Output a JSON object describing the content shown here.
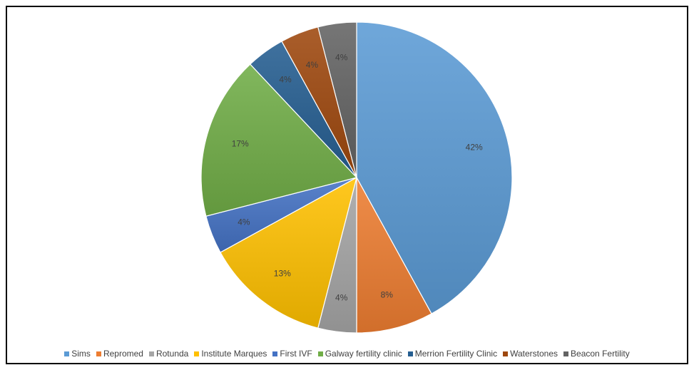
{
  "chart_data": {
    "type": "pie",
    "title": "",
    "legend_position": "bottom",
    "slices": [
      {
        "name": "Sims",
        "value": 42,
        "label": "42%",
        "color": "#5b9bd5"
      },
      {
        "name": "Repromed",
        "value": 8,
        "label": "8%",
        "color": "#ed7d31"
      },
      {
        "name": "Rotunda",
        "value": 4,
        "label": "4%",
        "color": "#a5a5a5"
      },
      {
        "name": "Institute Marques",
        "value": 13,
        "label": "13%",
        "color": "#ffc000"
      },
      {
        "name": "First IVF",
        "value": 4,
        "label": "4%",
        "color": "#4472c4"
      },
      {
        "name": "Galway fertility clinic",
        "value": 17,
        "label": "17%",
        "color": "#70ad47"
      },
      {
        "name": "Merrion Fertility Clinic",
        "value": 4,
        "label": "4%",
        "color": "#255e91"
      },
      {
        "name": "Waterstones",
        "value": 4,
        "label": "4%",
        "color": "#9e480e"
      },
      {
        "name": "Beacon Fertility",
        "value": 4,
        "label": "4%",
        "color": "#636363"
      }
    ]
  }
}
